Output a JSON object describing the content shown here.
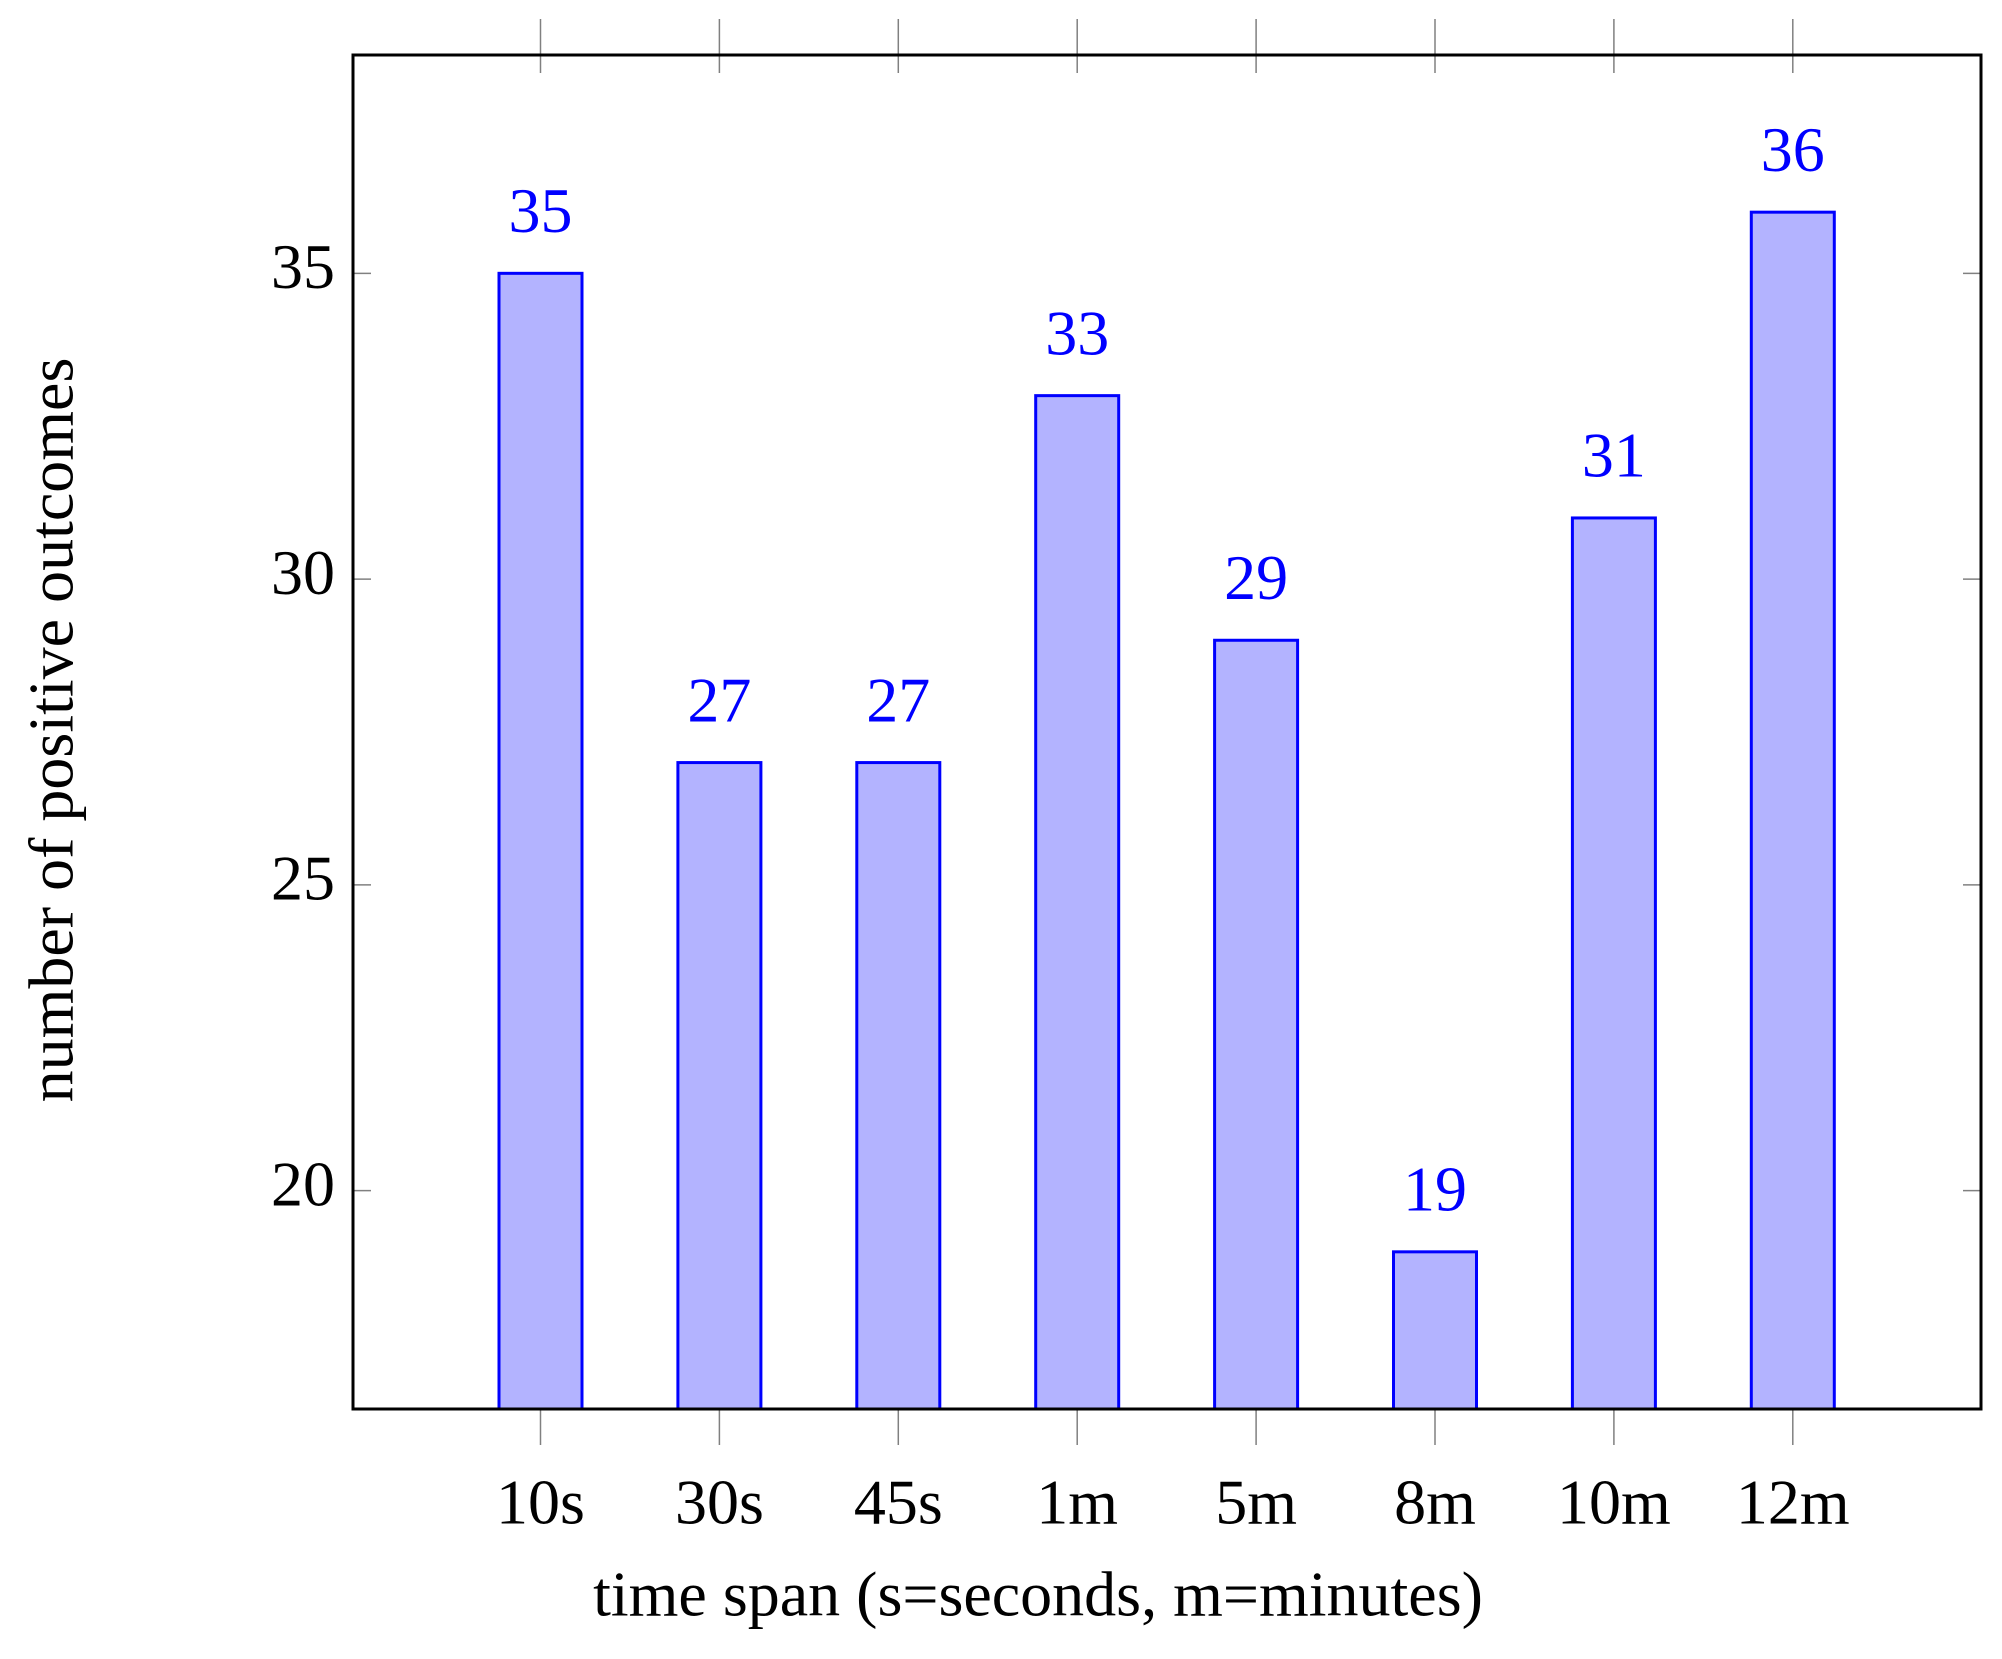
{
  "chart_data": {
    "type": "bar",
    "x_label": "time span (s=seconds, m=minutes)",
    "y_label": "number of positive outcomes",
    "categories": [
      "10s",
      "30s",
      "45s",
      "1m",
      "5m",
      "8m",
      "10m",
      "12m"
    ],
    "values": [
      35,
      27,
      27,
      33,
      29,
      19,
      31,
      36
    ],
    "color": "#b3b3ff",
    "edge_color": "#0000ff",
    "label_color": "#0000ff",
    "ylim": [
      16.43,
      38.57
    ],
    "yticks": [
      20,
      25,
      30,
      35
    ],
    "grid": false
  }
}
